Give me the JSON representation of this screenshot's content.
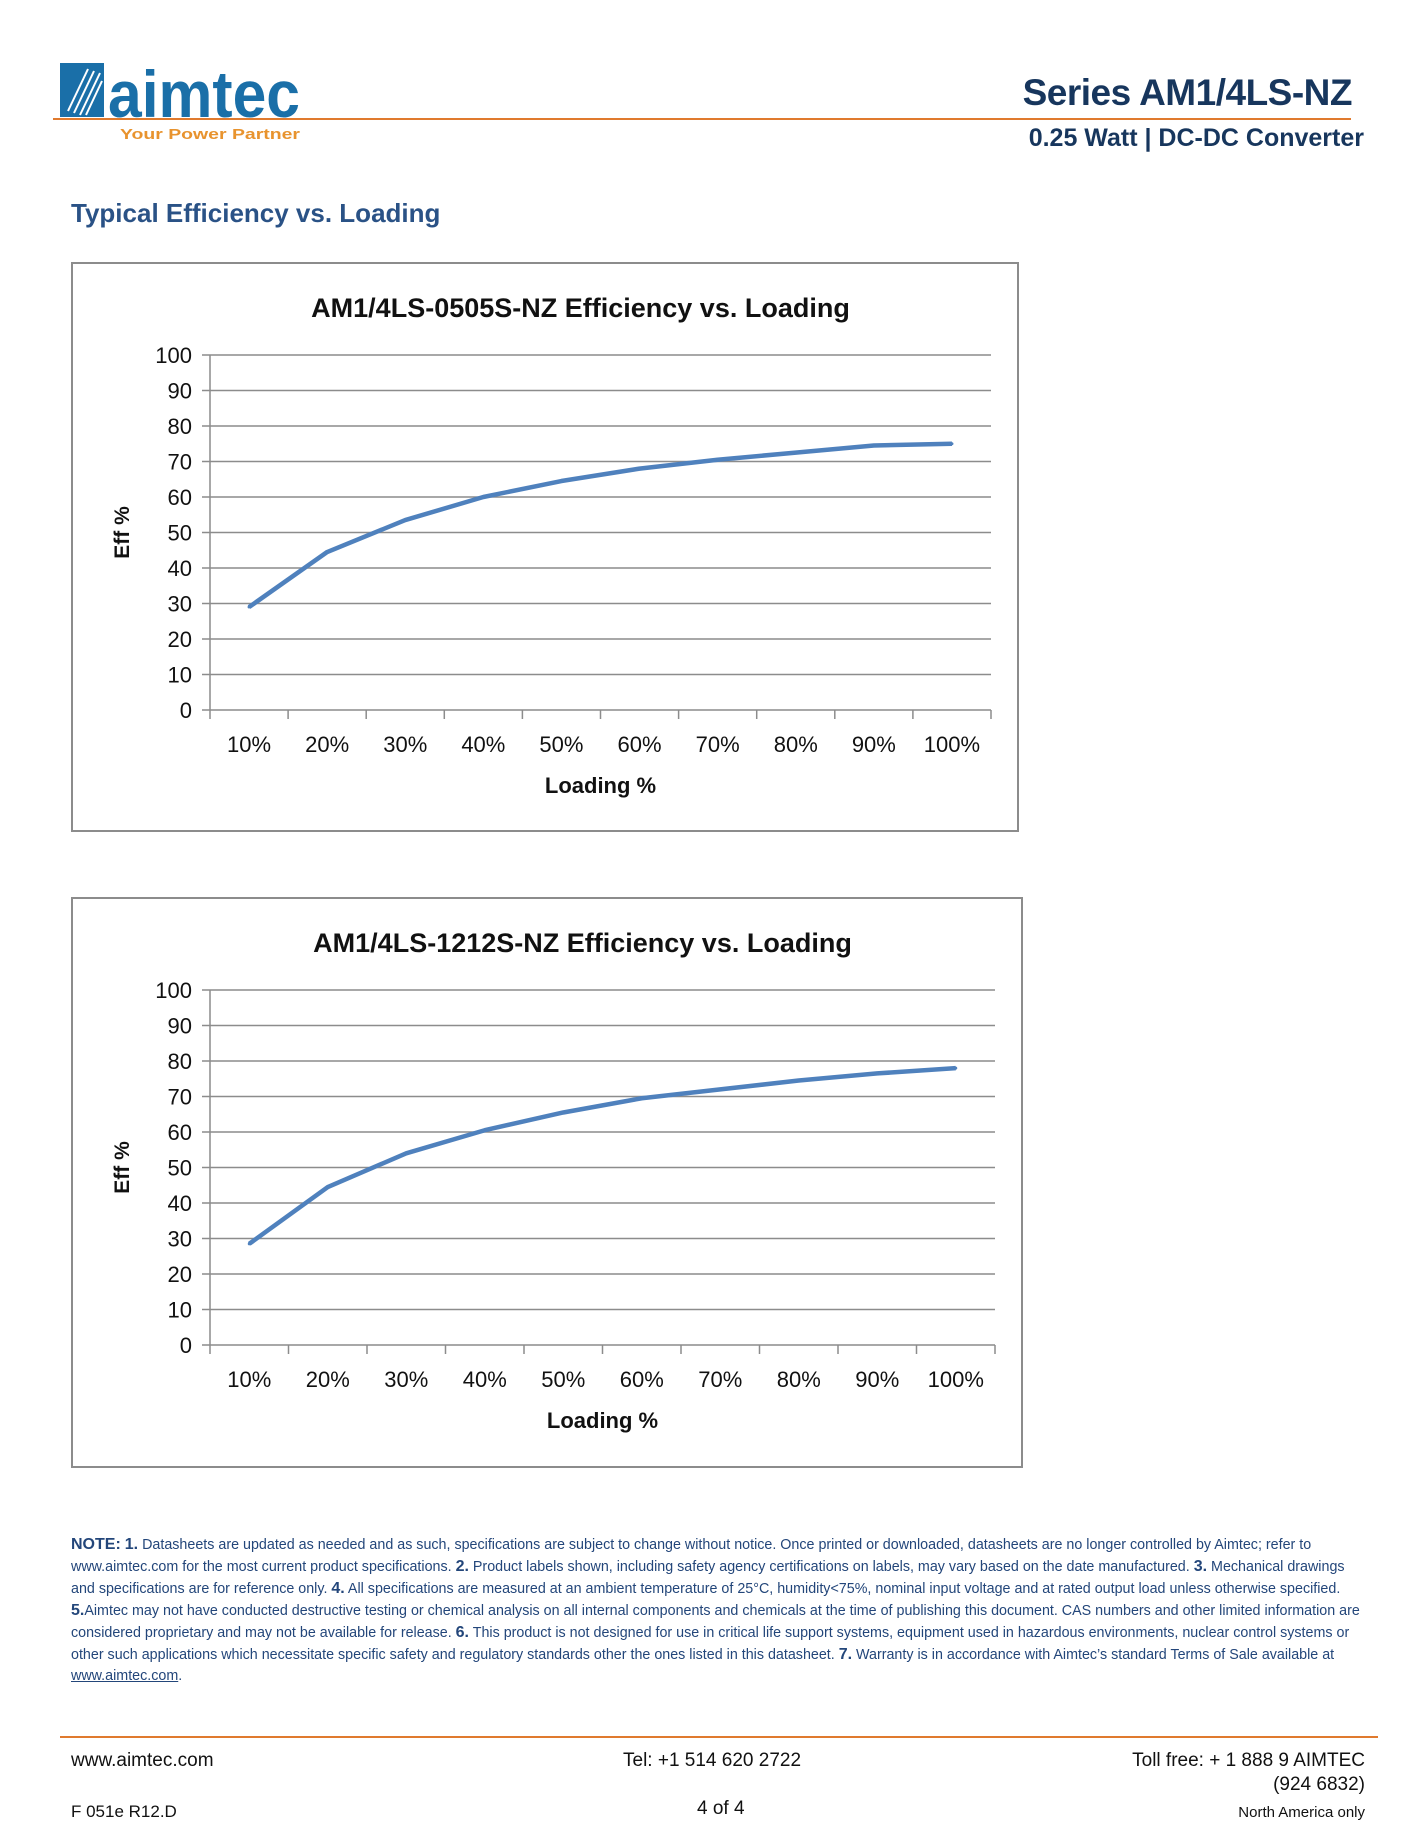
{
  "header": {
    "logo_text": "aimtec",
    "logo_tagline": "Your Power Partner",
    "series": "Series AM1/4LS-NZ",
    "subtitle": "0.25 Watt | DC-DC Converter",
    "brand_color": "#1a6fa8",
    "accent_color": "#e07a2e"
  },
  "section_title": "Typical Efficiency vs. Loading",
  "chart_data": [
    {
      "type": "line",
      "title": "AM1/4LS-0505S-NZ Efficiency vs. Loading",
      "xlabel": "Loading %",
      "ylabel": "Eff %",
      "categories": [
        "10%",
        "20%",
        "30%",
        "40%",
        "50%",
        "60%",
        "70%",
        "80%",
        "90%",
        "100%"
      ],
      "values": [
        29,
        44.5,
        53.5,
        60,
        64.5,
        68,
        70.5,
        72.5,
        74.5,
        75
      ],
      "ylim": [
        0,
        100
      ],
      "yticks": [
        "0",
        "10",
        "20",
        "30",
        "40",
        "50",
        "60",
        "70",
        "80",
        "90",
        "100"
      ],
      "grid": true,
      "line_color": "#4f81bd"
    },
    {
      "type": "line",
      "title": "AM1/4LS-1212S-NZ Efficiency vs. Loading",
      "xlabel": "Loading %",
      "ylabel": "Eff %",
      "categories": [
        "10%",
        "20%",
        "30%",
        "40%",
        "50%",
        "60%",
        "70%",
        "80%",
        "90%",
        "100%"
      ],
      "values": [
        28.5,
        44.5,
        54,
        60.5,
        65.5,
        69.5,
        72,
        74.5,
        76.5,
        78
      ],
      "ylim": [
        0,
        100
      ],
      "yticks": [
        "0",
        "10",
        "20",
        "30",
        "40",
        "50",
        "60",
        "70",
        "80",
        "90",
        "100"
      ],
      "grid": true,
      "line_color": "#4f81bd"
    }
  ],
  "notes": {
    "label": "NOTE:",
    "items": [
      {
        "num": "1.",
        "text": " Datasheets are updated as needed and as such, specifications are subject to change without notice.  Once printed or downloaded, datasheets are no longer controlled by Aimtec; refer to www.aimtec.com for the most current product specifications.  "
      },
      {
        "num": "2.",
        "text": " Product labels shown, including safety agency certifications on labels, may vary based on the date manufactured.  "
      },
      {
        "num": "3.",
        "text": " Mechanical drawings and specifications are for reference only.  "
      },
      {
        "num": "4.",
        "text": " All specifications are measured at an ambient temperature of 25°C, humidity<75%, nominal input voltage and at rated output load unless otherwise specified. "
      },
      {
        "num": "5.",
        "text": "Aimtec may not have conducted destructive testing or chemical analysis on all internal components and chemicals at the time of publishing this document.  CAS numbers and other limited information are considered proprietary and may not be available for release.  "
      },
      {
        "num": "6.",
        "text": " This product is not designed for use in critical life support systems, equipment used in hazardous environments, nuclear control systems or other such applications which necessitate specific safety and regulatory standards other the ones listed in this datasheet. "
      },
      {
        "num": "7.",
        "text": " Warranty is in accordance with Aimtec’s standard Terms of Sale available at "
      }
    ],
    "link": "www.aimtec.com",
    "end": "."
  },
  "footer": {
    "website": "www.aimtec.com",
    "tel": "Tel: +1 514 620 2722",
    "tollfree": "Toll free: + 1 888 9 AIMTEC",
    "tollfree_num": "(924 6832)",
    "doc_code": "F 051e R12.D",
    "page": "4 of 4",
    "region": "North America only"
  }
}
